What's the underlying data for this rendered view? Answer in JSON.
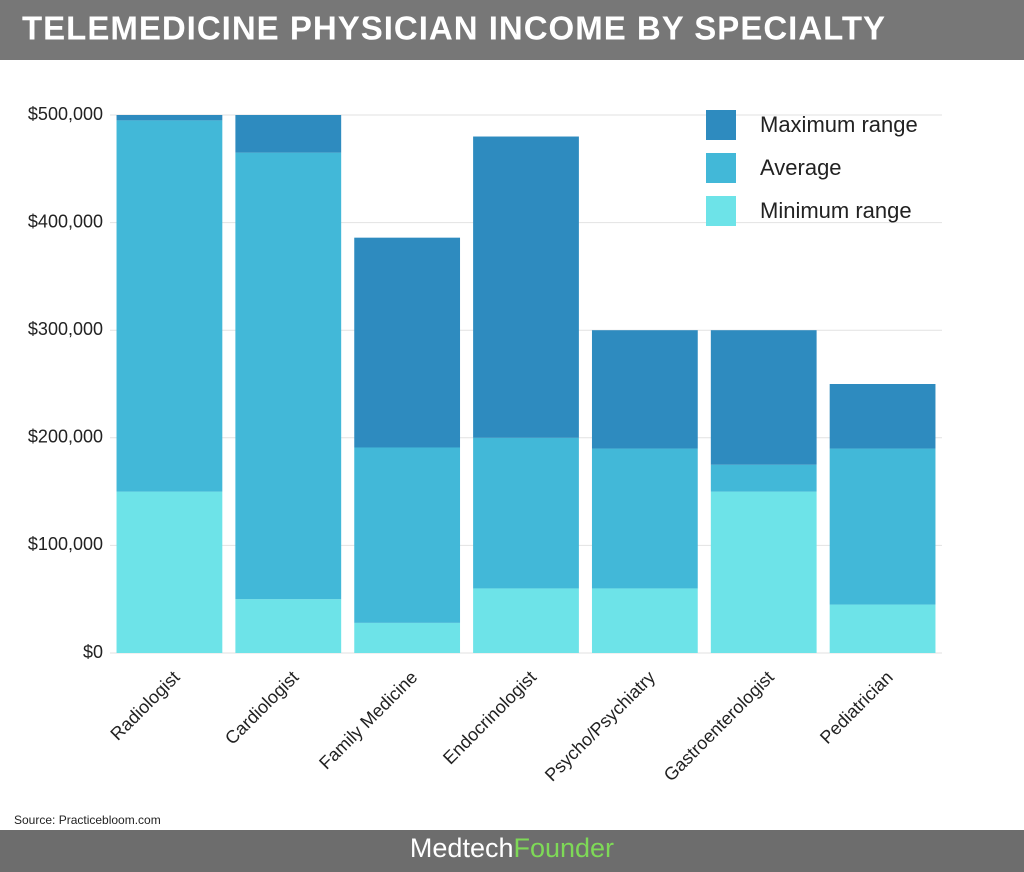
{
  "chart_data": {
    "type": "stacked_bar",
    "title": "TELEMEDICINE PHYSICIAN INCOME BY SPECIALTY",
    "source": "Source: Practicebloom.com",
    "footer": {
      "brand": "Medtech",
      "brand_accent": "Founder"
    },
    "categories": [
      "Radiologist",
      "Cardiologist",
      "Family Medicine",
      "Endocrinologist",
      "Psycho/Psychiatry",
      "Gastroenterologist",
      "Pediatrician"
    ],
    "series": [
      {
        "name": "Minimum range",
        "color": "#6de3e8",
        "values": [
          150000,
          50000,
          28000,
          60000,
          60000,
          150000,
          45000
        ]
      },
      {
        "name": "Average",
        "color": "#42b8d8",
        "values": [
          345000,
          415000,
          163000,
          140000,
          130000,
          25000,
          145000
        ]
      },
      {
        "name": "Maximum range",
        "color": "#2e8bbf",
        "values": [
          5000,
          35000,
          195000,
          280000,
          110000,
          125000,
          60000
        ]
      }
    ],
    "ylim": [
      0,
      500000
    ],
    "yticks": [
      {
        "value": 0,
        "label": "$0"
      },
      {
        "value": 100000,
        "label": "$100,000"
      },
      {
        "value": 200000,
        "label": "$200,000"
      },
      {
        "value": 300000,
        "label": "$300,000"
      },
      {
        "value": 400000,
        "label": "$400,000"
      },
      {
        "value": 500000,
        "label": "$500,000"
      }
    ],
    "grid": true,
    "legend": "top-right"
  }
}
